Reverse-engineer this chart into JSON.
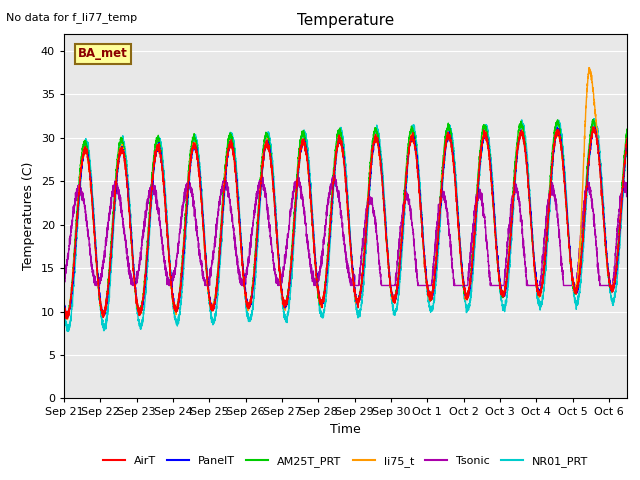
{
  "title": "Temperature",
  "xlabel": "Time",
  "ylabel": "Temperatures (C)",
  "top_left_text": "No data for f_li77_temp",
  "legend_box_text": "BA_met",
  "ylim": [
    0,
    42
  ],
  "yticks": [
    0,
    5,
    10,
    15,
    20,
    25,
    30,
    35,
    40
  ],
  "background_color": "#e8e8e8",
  "series": {
    "AirT": {
      "color": "#ff0000",
      "lw": 1.0
    },
    "PanelT": {
      "color": "#0000ff",
      "lw": 1.0
    },
    "AM25T_PRT": {
      "color": "#00cc00",
      "lw": 1.0
    },
    "li75_t": {
      "color": "#ff9900",
      "lw": 1.0
    },
    "Tsonic": {
      "color": "#aa00aa",
      "lw": 1.0
    },
    "NR01_PRT": {
      "color": "#00cccc",
      "lw": 1.0
    }
  },
  "xticklabels": [
    "Sep 21",
    "Sep 22",
    "Sep 23",
    "Sep 24",
    "Sep 25",
    "Sep 26",
    "Sep 27",
    "Sep 28",
    "Sep 29",
    "Sep 30",
    "Oct 1",
    "Oct 2",
    "Oct 3",
    "Oct 4",
    "Oct 5",
    "Oct 6"
  ],
  "day_count": 16
}
